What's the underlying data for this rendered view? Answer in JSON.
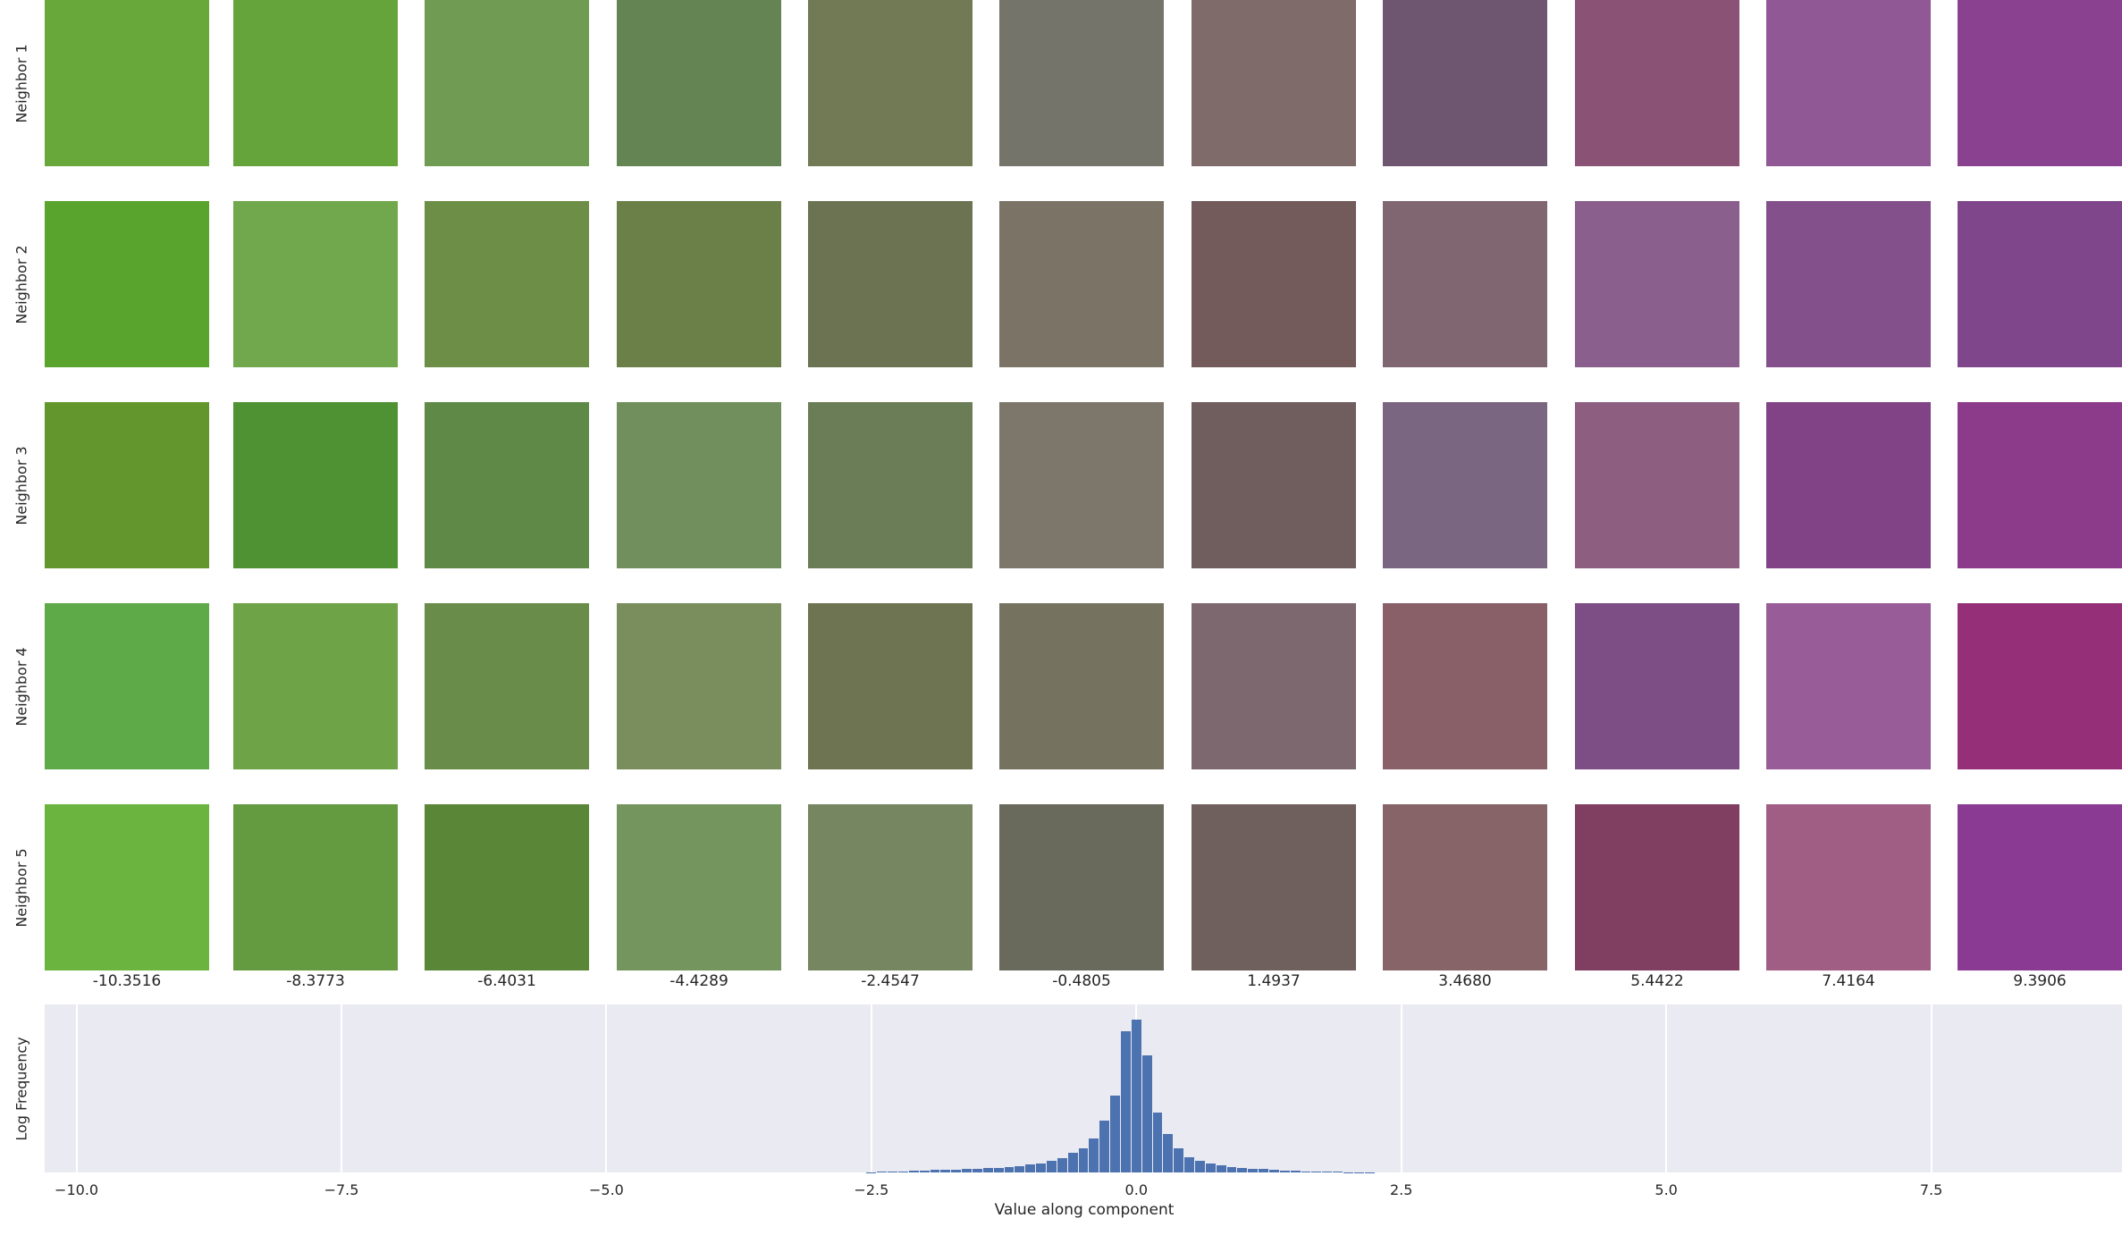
{
  "row_labels": [
    "Neighbor 1",
    "Neighbor 2",
    "Neighbor 3",
    "Neighbor 4",
    "Neighbor 5"
  ],
  "column_values": [
    "-10.3516",
    "-8.3773",
    "-6.4031",
    "-4.4289",
    "-2.4547",
    "-0.4805",
    "1.4937",
    "3.4680",
    "5.4422",
    "7.4164",
    "9.3906"
  ],
  "tile_colors": [
    [
      "#68a83a",
      "#64a43a",
      "#709b53",
      "#648453",
      "#727a55",
      "#74746a",
      "#7e6b6a",
      "#6e5570",
      "#8a5275",
      "#905895",
      "#8a4290"
    ],
    [
      "#58a42c",
      "#72a84d",
      "#6c8e47",
      "#6a8048",
      "#6c7352",
      "#7b7466",
      "#735a5b",
      "#7f6670",
      "#8a5f8d",
      "#84508c",
      "#80468b"
    ],
    [
      "#64962e",
      "#4e9234",
      "#5e8946",
      "#708f5c",
      "#6a7d56",
      "#7c776a",
      "#6f5e5d",
      "#7a6680",
      "#8d5e80",
      "#814386",
      "#8c3a8a"
    ],
    [
      "#5eaa48",
      "#6ea347",
      "#6a8c4b",
      "#7a8d5c",
      "#6e7452",
      "#757360",
      "#7e6870",
      "#895f68",
      "#7c4e85",
      "#985d98",
      "#952f78"
    ],
    [
      "#6cb440",
      "#649a40",
      "#5a8638",
      "#74955e",
      "#758660",
      "#69695c",
      "#6f5f5d",
      "#866468",
      "#803f60",
      "#a05e84",
      "#8a3a92"
    ]
  ],
  "chart_data": {
    "type": "bar",
    "x": [
      -2.5,
      -2.4,
      -2.3,
      -2.2,
      -2.1,
      -2.0,
      -1.9,
      -1.8,
      -1.7,
      -1.6,
      -1.5,
      -1.4,
      -1.3,
      -1.2,
      -1.1,
      -1.0,
      -0.9,
      -0.8,
      -0.7,
      -0.6,
      -0.5,
      -0.4,
      -0.3,
      -0.2,
      -0.1,
      0.0,
      0.1,
      0.2,
      0.3,
      0.4,
      0.5,
      0.6,
      0.7,
      0.8,
      0.9,
      1.0,
      1.1,
      1.2,
      1.3,
      1.4,
      1.5,
      1.6,
      1.7,
      1.8,
      1.9,
      2.0,
      2.1,
      2.2
    ],
    "values": [
      0.2,
      0.3,
      0.5,
      0.8,
      1.0,
      1.2,
      1.4,
      1.6,
      1.8,
      2.0,
      2.3,
      2.6,
      3.0,
      3.4,
      4.0,
      4.8,
      5.8,
      7.2,
      9.0,
      12.0,
      15.0,
      21.0,
      32.0,
      48.0,
      88.0,
      95.0,
      73.0,
      37.0,
      24.0,
      15.0,
      9.5,
      7.0,
      5.5,
      4.5,
      3.6,
      3.0,
      2.5,
      2.0,
      1.6,
      1.3,
      1.0,
      0.8,
      0.6,
      0.4,
      0.3,
      0.2,
      0.15,
      0.1
    ],
    "xlabel": "Value along component",
    "ylabel": "Log Frequency",
    "xticks": [
      "−10.0",
      "−7.5",
      "−5.0",
      "−2.5",
      "0.0",
      "2.5",
      "5.0",
      "7.5"
    ],
    "xtick_values": [
      -10.0,
      -7.5,
      -5.0,
      -2.5,
      0.0,
      2.5,
      5.0,
      7.5
    ],
    "xlim": [
      -10.3,
      9.3
    ],
    "ylim": [
      0,
      100
    ],
    "bar_color": "#4c72b0",
    "background": "#eaeaf2",
    "grid": true
  }
}
